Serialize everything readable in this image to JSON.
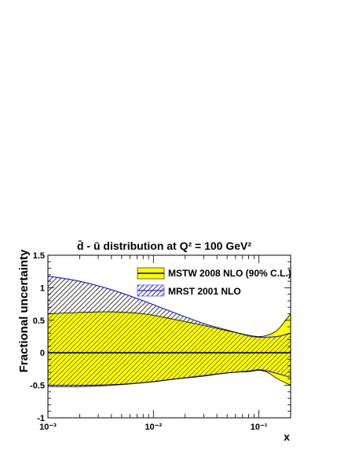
{
  "chart_data": {
    "type": "line",
    "title": "d̄ - ū distribution at Q² = 100 GeV²",
    "xlabel": "x",
    "ylabel": "Fractional uncertainty",
    "xscale": "log",
    "xlim": [
      0.001,
      0.2
    ],
    "ylim": [
      -1,
      1.5
    ],
    "x_ticks": [
      {
        "value": 0.001,
        "label": "10⁻³"
      },
      {
        "value": 0.01,
        "label": "10⁻²"
      },
      {
        "value": 0.1,
        "label": "10⁻¹"
      }
    ],
    "y_ticks": [
      {
        "value": -1,
        "label": "-1"
      },
      {
        "value": -0.5,
        "label": "-0.5"
      },
      {
        "value": 0,
        "label": "0"
      },
      {
        "value": 0.5,
        "label": "0.5"
      },
      {
        "value": 1,
        "label": "1"
      },
      {
        "value": 1.5,
        "label": "1.5"
      }
    ],
    "legend_position": "top-right",
    "series": [
      {
        "name": "MSTW 2008 NLO (90% C.L.)",
        "style": "filled band with central line",
        "fill_color": "#ffff00",
        "line_color": "#000000",
        "x": [
          0.001,
          0.002,
          0.004,
          0.008,
          0.015,
          0.03,
          0.05,
          0.08,
          0.1,
          0.12,
          0.15,
          0.2
        ],
        "upper": [
          0.6,
          0.62,
          0.63,
          0.6,
          0.52,
          0.42,
          0.34,
          0.27,
          0.25,
          0.27,
          0.35,
          0.6
        ],
        "central": [
          0,
          0,
          0,
          0,
          0,
          0,
          0,
          0,
          0,
          0,
          0,
          0
        ],
        "lower": [
          -0.5,
          -0.5,
          -0.49,
          -0.46,
          -0.41,
          -0.36,
          -0.31,
          -0.29,
          -0.27,
          -0.3,
          -0.4,
          -0.5
        ]
      },
      {
        "name": "MRST 2001 NLO",
        "style": "hatched band",
        "fill_color": "#2c2cd0",
        "line_color": "#2c2cd0",
        "x": [
          0.001,
          0.002,
          0.004,
          0.008,
          0.015,
          0.03,
          0.05,
          0.08,
          0.1,
          0.12,
          0.15,
          0.2
        ],
        "upper": [
          1.18,
          1.1,
          0.97,
          0.8,
          0.63,
          0.45,
          0.35,
          0.26,
          0.24,
          0.24,
          0.25,
          0.3
        ],
        "lower": [
          -0.52,
          -0.52,
          -0.5,
          -0.46,
          -0.41,
          -0.35,
          -0.31,
          -0.28,
          -0.26,
          -0.28,
          -0.32,
          -0.38
        ]
      }
    ]
  }
}
